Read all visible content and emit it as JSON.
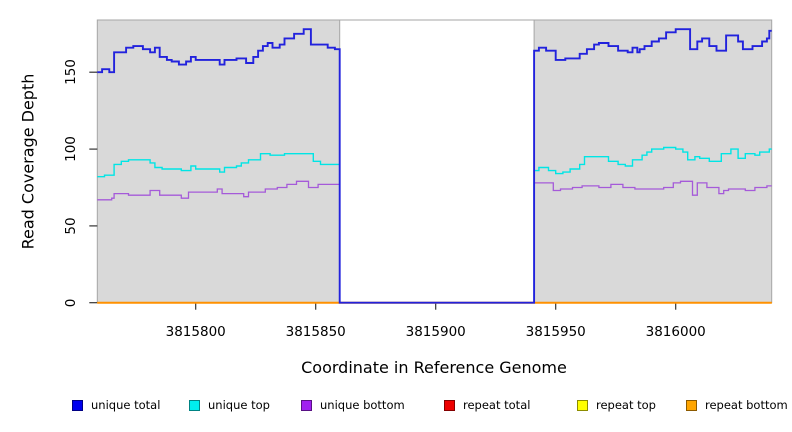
{
  "chart_data": {
    "type": "line",
    "subtype": "step-coverage",
    "title": "",
    "xlabel": "Coordinate in Reference Genome",
    "ylabel": "Read Coverage Depth",
    "xlim": [
      3815759,
      3816040
    ],
    "ylim": [
      0,
      184
    ],
    "x_ticks": [
      3815800,
      3815850,
      3815900,
      3815950,
      3816000
    ],
    "x_tick_labels": [
      "3815800",
      "3815850",
      "3815900",
      "3815950",
      "3816000"
    ],
    "y_ticks": [
      0,
      50,
      100,
      150
    ],
    "y_tick_labels": [
      "0",
      "50",
      "100",
      "150"
    ],
    "grid": false,
    "legend_position": "bottom",
    "panel_background": "#d9d9d9",
    "panel_border": "#a6a6a6",
    "gap_region": {
      "start": 3815860,
      "end": 3815941,
      "fill": "#ffffff",
      "note": "all series drop to 0 in this region"
    },
    "legend": [
      {
        "label": "unique total",
        "color": "#0000ee"
      },
      {
        "label": "unique top",
        "color": "#00eeee"
      },
      {
        "label": "unique bottom",
        "color": "#a020f0"
      },
      {
        "label": "repeat total",
        "color": "#ee0000"
      },
      {
        "label": "repeat top",
        "color": "#ffff00"
      },
      {
        "label": "repeat bottom",
        "color": "#ffa500"
      }
    ],
    "series": [
      {
        "name": "repeat total",
        "color": "#dd0000",
        "width": 1.5,
        "steps": [
          [
            3815759,
            0
          ]
        ]
      },
      {
        "name": "repeat top",
        "color": "#eeee00",
        "width": 1.5,
        "steps": [
          [
            3815759,
            0
          ]
        ]
      },
      {
        "name": "repeat bottom",
        "color": "#ff9100",
        "width": 2,
        "steps": [
          [
            3815759,
            0
          ]
        ]
      },
      {
        "name": "unique bottom",
        "color": "#a55ad9",
        "width": 1.3,
        "steps": [
          [
            3815759,
            67
          ],
          [
            3815765,
            68
          ],
          [
            3815766,
            71
          ],
          [
            3815772,
            70
          ],
          [
            3815781,
            73
          ],
          [
            3815785,
            70
          ],
          [
            3815794,
            68
          ],
          [
            3815797,
            72
          ],
          [
            3815800,
            72
          ],
          [
            3815809,
            74
          ],
          [
            3815811,
            71
          ],
          [
            3815820,
            69
          ],
          [
            3815822,
            72
          ],
          [
            3815829,
            74
          ],
          [
            3815834,
            75
          ],
          [
            3815838,
            77
          ],
          [
            3815842,
            79
          ],
          [
            3815847,
            75
          ],
          [
            3815851,
            77
          ],
          [
            3815860,
            0
          ],
          [
            3815941,
            78
          ],
          [
            3815949,
            73
          ],
          [
            3815952,
            74
          ],
          [
            3815957,
            75
          ],
          [
            3815961,
            76
          ],
          [
            3815968,
            75
          ],
          [
            3815973,
            77
          ],
          [
            3815978,
            75
          ],
          [
            3815983,
            74
          ],
          [
            3815995,
            75
          ],
          [
            3815999,
            78
          ],
          [
            3816002,
            79
          ],
          [
            3816007,
            70
          ],
          [
            3816009,
            78
          ],
          [
            3816013,
            75
          ],
          [
            3816018,
            71
          ],
          [
            3816020,
            73
          ],
          [
            3816022,
            74
          ],
          [
            3816029,
            73
          ],
          [
            3816033,
            75
          ],
          [
            3816038,
            76
          ]
        ]
      },
      {
        "name": "unique top",
        "color": "#00e5e5",
        "width": 1.4,
        "steps": [
          [
            3815759,
            82
          ],
          [
            3815762,
            83
          ],
          [
            3815766,
            90
          ],
          [
            3815769,
            92
          ],
          [
            3815772,
            93
          ],
          [
            3815781,
            91
          ],
          [
            3815783,
            88
          ],
          [
            3815786,
            87
          ],
          [
            3815794,
            86
          ],
          [
            3815798,
            89
          ],
          [
            3815800,
            87
          ],
          [
            3815810,
            85
          ],
          [
            3815812,
            88
          ],
          [
            3815817,
            89
          ],
          [
            3815819,
            91
          ],
          [
            3815822,
            93
          ],
          [
            3815827,
            97
          ],
          [
            3815831,
            96
          ],
          [
            3815837,
            97
          ],
          [
            3815849,
            92
          ],
          [
            3815852,
            90
          ],
          [
            3815860,
            0
          ],
          [
            3815941,
            86
          ],
          [
            3815943,
            88
          ],
          [
            3815947,
            86
          ],
          [
            3815950,
            84
          ],
          [
            3815953,
            85
          ],
          [
            3815956,
            87
          ],
          [
            3815960,
            90
          ],
          [
            3815962,
            95
          ],
          [
            3815972,
            92
          ],
          [
            3815976,
            90
          ],
          [
            3815979,
            89
          ],
          [
            3815982,
            93
          ],
          [
            3815986,
            96
          ],
          [
            3815988,
            98
          ],
          [
            3815990,
            100
          ],
          [
            3815995,
            101
          ],
          [
            3816000,
            100
          ],
          [
            3816003,
            98
          ],
          [
            3816005,
            93
          ],
          [
            3816008,
            95
          ],
          [
            3816010,
            94
          ],
          [
            3816014,
            92
          ],
          [
            3816019,
            97
          ],
          [
            3816023,
            100
          ],
          [
            3816026,
            94
          ],
          [
            3816029,
            97
          ],
          [
            3816033,
            96
          ],
          [
            3816035,
            98
          ],
          [
            3816039,
            100
          ]
        ]
      },
      {
        "name": "unique total",
        "color": "#2222dd",
        "width": 1.9,
        "steps": [
          [
            3815759,
            150
          ],
          [
            3815761,
            152
          ],
          [
            3815764,
            150
          ],
          [
            3815766,
            163
          ],
          [
            3815771,
            166
          ],
          [
            3815774,
            167
          ],
          [
            3815778,
            165
          ],
          [
            3815781,
            163
          ],
          [
            3815783,
            166
          ],
          [
            3815785,
            160
          ],
          [
            3815788,
            158
          ],
          [
            3815790,
            157
          ],
          [
            3815793,
            155
          ],
          [
            3815796,
            157
          ],
          [
            3815798,
            160
          ],
          [
            3815800,
            158
          ],
          [
            3815810,
            155
          ],
          [
            3815812,
            158
          ],
          [
            3815817,
            159
          ],
          [
            3815821,
            156
          ],
          [
            3815824,
            160
          ],
          [
            3815826,
            164
          ],
          [
            3815828,
            167
          ],
          [
            3815830,
            169
          ],
          [
            3815832,
            166
          ],
          [
            3815835,
            168
          ],
          [
            3815837,
            172
          ],
          [
            3815841,
            175
          ],
          [
            3815845,
            178
          ],
          [
            3815848,
            168
          ],
          [
            3815855,
            166
          ],
          [
            3815858,
            165
          ],
          [
            3815860,
            0
          ],
          [
            3815941,
            164
          ],
          [
            3815943,
            166
          ],
          [
            3815946,
            164
          ],
          [
            3815950,
            158
          ],
          [
            3815954,
            159
          ],
          [
            3815960,
            162
          ],
          [
            3815963,
            165
          ],
          [
            3815966,
            168
          ],
          [
            3815968,
            169
          ],
          [
            3815972,
            167
          ],
          [
            3815976,
            164
          ],
          [
            3815980,
            163
          ],
          [
            3815982,
            166
          ],
          [
            3815984,
            163
          ],
          [
            3815985,
            165
          ],
          [
            3815987,
            167
          ],
          [
            3815990,
            170
          ],
          [
            3815993,
            172
          ],
          [
            3815996,
            176
          ],
          [
            3816000,
            178
          ],
          [
            3816006,
            165
          ],
          [
            3816009,
            170
          ],
          [
            3816011,
            172
          ],
          [
            3816014,
            167
          ],
          [
            3816017,
            164
          ],
          [
            3816021,
            174
          ],
          [
            3816026,
            170
          ],
          [
            3816028,
            165
          ],
          [
            3816032,
            167
          ],
          [
            3816036,
            170
          ],
          [
            3816038,
            172
          ],
          [
            3816039,
            177
          ]
        ]
      }
    ]
  }
}
